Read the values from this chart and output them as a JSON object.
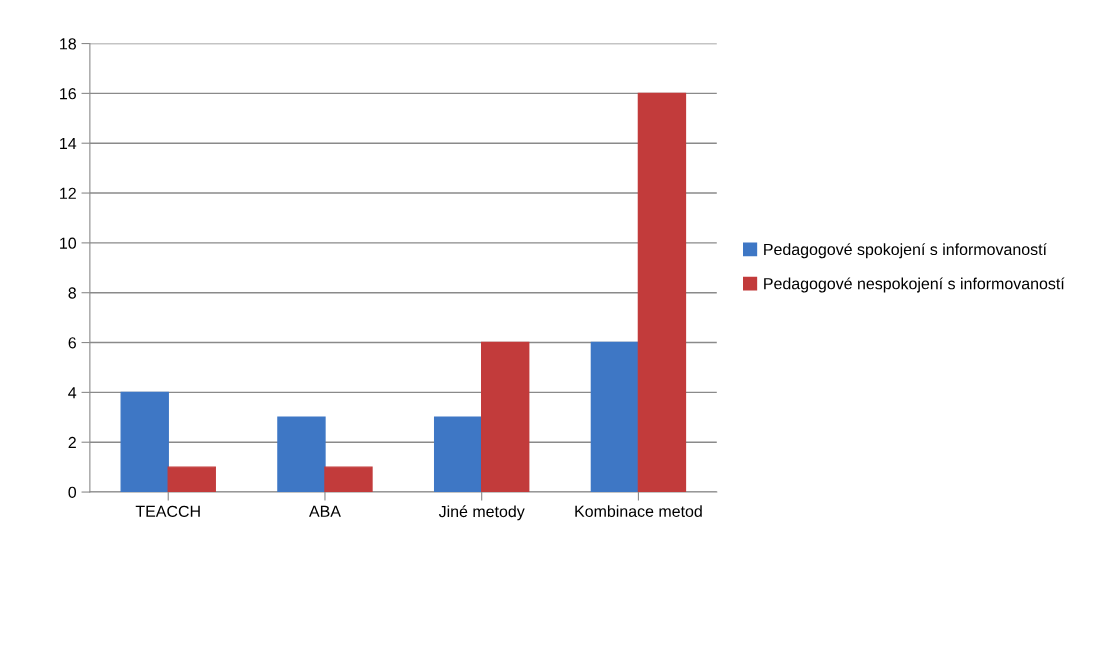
{
  "chart_data": {
    "type": "bar",
    "categories": [
      "TEACCH",
      "ABA",
      "Jiné metody",
      "Kombinace metod"
    ],
    "series": [
      {
        "name": "Pedagogové spokojení s informovaností",
        "color": "#3e77c5",
        "values": [
          4,
          3,
          3,
          6
        ]
      },
      {
        "name": "Pedagogové nespokojení s informovaností",
        "color": "#c23b3b",
        "values": [
          1,
          1,
          6,
          16
        ]
      }
    ],
    "ylim": [
      0,
      18
    ],
    "yticks": [
      0,
      2,
      4,
      6,
      8,
      10,
      12,
      14,
      16,
      18
    ],
    "grid": "y",
    "legend": "right"
  }
}
